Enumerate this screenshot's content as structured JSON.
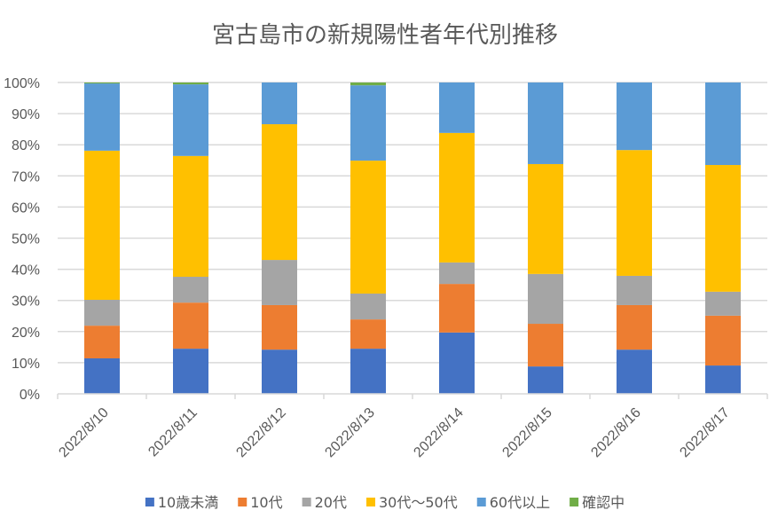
{
  "chart_data": {
    "type": "bar",
    "stacked": "percent",
    "title": "宮古島市の新規陽性者年代別推移",
    "xlabel": "",
    "ylabel": "",
    "ylim": [
      0,
      100
    ],
    "yticks": [
      "0%",
      "10%",
      "20%",
      "30%",
      "40%",
      "50%",
      "60%",
      "70%",
      "80%",
      "90%",
      "100%"
    ],
    "grid": true,
    "legend_position": "bottom",
    "categories": [
      "2022/8/10",
      "2022/8/11",
      "2022/8/12",
      "2022/8/13",
      "2022/8/14",
      "2022/8/15",
      "2022/8/16",
      "2022/8/17"
    ],
    "series": [
      {
        "name": "10歳未満",
        "color": "#4472C4",
        "values": [
          11.4,
          14.5,
          14.2,
          14.5,
          19.7,
          8.8,
          14.2,
          9.1
        ]
      },
      {
        "name": "10代",
        "color": "#ED7D31",
        "values": [
          10.5,
          14.8,
          14.3,
          9.4,
          15.6,
          13.7,
          14.3,
          16.0
        ]
      },
      {
        "name": "20代",
        "color": "#A5A5A5",
        "values": [
          8.3,
          8.3,
          14.5,
          8.3,
          6.9,
          16.0,
          9.4,
          7.7
        ]
      },
      {
        "name": "30代〜50代",
        "color": "#FFC000",
        "values": [
          47.9,
          38.8,
          43.6,
          42.7,
          41.6,
          35.3,
          40.4,
          40.7
        ]
      },
      {
        "name": "60代以上",
        "color": "#5B9BD5",
        "values": [
          21.6,
          23.0,
          13.4,
          24.2,
          16.2,
          26.2,
          21.7,
          26.5
        ]
      },
      {
        "name": "確認中",
        "color": "#70AD47",
        "values": [
          0.3,
          0.6,
          0.0,
          0.9,
          0.0,
          0.0,
          0.0,
          0.0
        ]
      }
    ]
  },
  "colors": {
    "gridline": "#D9D9D9",
    "text": "#595959"
  }
}
